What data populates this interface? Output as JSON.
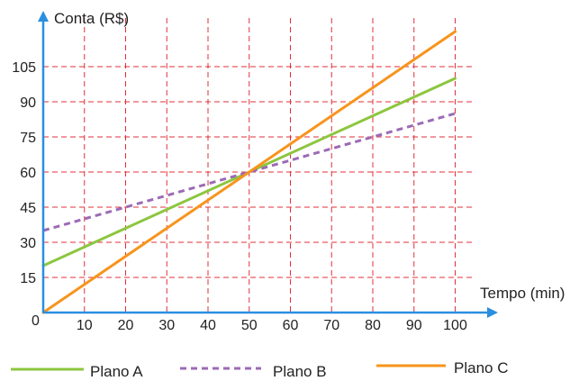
{
  "chart_data": {
    "type": "line",
    "title": "",
    "xlabel": "Tempo (min)",
    "ylabel": "Conta (R$)",
    "origin_label": "0",
    "xlim": [
      0,
      100
    ],
    "ylim": [
      0,
      120
    ],
    "x_ticks": [
      10,
      20,
      30,
      40,
      50,
      60,
      70,
      80,
      90,
      100
    ],
    "y_ticks": [
      15,
      30,
      45,
      60,
      75,
      90,
      105
    ],
    "grid": true,
    "legend_position": "bottom",
    "series": [
      {
        "name": "Plano A",
        "x": [
          0,
          100
        ],
        "y": [
          20,
          100
        ],
        "color": "#8cc63f",
        "dashed": false
      },
      {
        "name": "Plano B",
        "x": [
          0,
          100
        ],
        "y": [
          35,
          85
        ],
        "color": "#9b6bb5",
        "dashed": true
      },
      {
        "name": "Plano C",
        "x": [
          0,
          100
        ],
        "y": [
          0,
          120
        ],
        "color": "#f7941d",
        "dashed": false
      }
    ],
    "colors": {
      "grid": "#e0303a",
      "axis": "#2a8fe0"
    }
  }
}
